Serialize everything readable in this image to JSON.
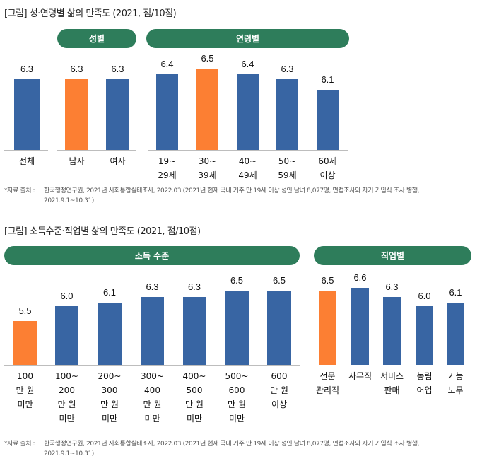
{
  "colors": {
    "highlight": "#fc7f33",
    "normal": "#3865a3",
    "pill": "#2e7d5b",
    "axis": "#bdbdbd"
  },
  "figure1": {
    "title": "[그림] 성·연령별 삶의 만족도 (2021, 점/10점)",
    "pills": {
      "sex": "성별",
      "age": "연령별"
    },
    "source_label": "*자료 출처 :",
    "source_line1": "한국행정연구원, 2021년 사회통합실태조사, 2022.03 (2021년 현재 국내 거주 만 19세 이상 성인 남녀 8,077명, 면접조사와 자기 기입식 조사 병행,",
    "source_line2": "2021.9.1~10.31)"
  },
  "figure2": {
    "title": "[그림] 소득수준·직업별 삶의 만족도 (2021, 점/10점)",
    "pills": {
      "income": "소득 수준",
      "job": "직업별"
    },
    "source_label": "*자료 출처 :",
    "source_line1": "한국행정연구원, 2021년 사회통합실태조사, 2022.03 (2021년 현재 국내 거주 만 19세 이상 성인 남녀 8,077명, 면접조사와 자기 기입식 조사 병행,",
    "source_line2": "2021.9.1~10.31)"
  },
  "chart_data": [
    {
      "type": "bar",
      "title": "[그림] 성·연령별 삶의 만족도 (2021, 점/10점)",
      "groups": [
        "",
        "성별",
        "연령별"
      ],
      "categories": [
        "전체",
        "남자",
        "여자",
        "19~\n29세",
        "30~\n39세",
        "40~\n49세",
        "50~\n59세",
        "60세\n이상"
      ],
      "values": [
        6.3,
        6.3,
        6.3,
        6.4,
        6.5,
        6.4,
        6.3,
        6.1
      ],
      "labels": [
        "6.3",
        "6.3",
        "6.3",
        "6.4",
        "6.5",
        "6.4",
        "6.3",
        "6.1"
      ],
      "highlight": [
        false,
        true,
        false,
        false,
        true,
        false,
        false,
        false
      ],
      "xlabel": "",
      "ylabel": ""
    },
    {
      "type": "bar",
      "title": "[그림] 소득수준·직업별 삶의 만족도 (2021, 점/10점)",
      "groups": [
        "소득 수준",
        "직업별"
      ],
      "categories": [
        "100\n만 원\n미만",
        "100~\n200\n만 원\n미만",
        "200~\n300\n만 원\n미만",
        "300~\n400\n만 원\n미만",
        "400~\n500\n만 원\n미만",
        "500~\n600\n만 원\n미만",
        "600\n만 원\n이상",
        "전문\n관리직",
        "사무직",
        "서비스\n판매",
        "농림\n어업",
        "기능\n노무"
      ],
      "values": [
        5.5,
        6.0,
        6.1,
        6.3,
        6.3,
        6.5,
        6.5,
        6.5,
        6.6,
        6.3,
        6.0,
        6.1
      ],
      "labels": [
        "5.5",
        "6.0",
        "6.1",
        "6.3",
        "6.3",
        "6.5",
        "6.5",
        "6.5",
        "6.6",
        "6.3",
        "6.0",
        "6.1"
      ],
      "highlight": [
        true,
        false,
        false,
        false,
        false,
        false,
        false,
        true,
        false,
        false,
        false,
        false
      ],
      "xlabel": "",
      "ylabel": ""
    }
  ]
}
